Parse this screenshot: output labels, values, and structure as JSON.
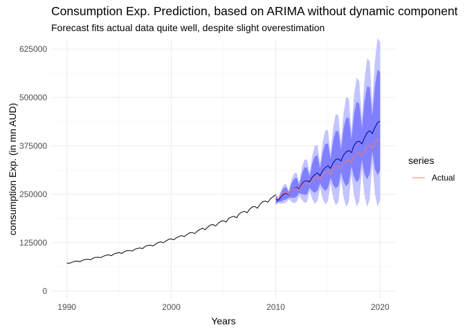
{
  "chart_data": {
    "type": "line",
    "title": "Consumption Exp. Prediction, based on ARIMA without dynamic component",
    "subtitle": "Forecast fits actual data quite well, despite slight overestimation",
    "xlabel": "Years",
    "ylabel": "consumption Exp. (in mn AUD)",
    "xlim": [
      1988.5,
      2021.5
    ],
    "ylim": [
      -20000,
      650000
    ],
    "x_ticks": [
      1990,
      2000,
      2010,
      2020
    ],
    "y_ticks": [
      0,
      125000,
      250000,
      375000,
      500000,
      625000
    ],
    "y_tick_labels": [
      "0",
      "125000",
      "250000",
      "375000",
      "500000",
      "625000"
    ],
    "grid": true,
    "legend": {
      "title": "series",
      "position": "right",
      "entries": [
        {
          "label": "Actual",
          "color": "#f8766d"
        }
      ]
    },
    "history": {
      "start": 1990.0,
      "end": 2010.0,
      "start_value": 72000,
      "end_value": 245000,
      "growth": "exponential",
      "seasonal": "quarterly",
      "color": "#000000"
    },
    "forecast": {
      "start": 2010.0,
      "end": 2020.0,
      "start_value": 235000,
      "end_value": 433000,
      "color": "#00008b",
      "band_80": {
        "start_half_width": 8000,
        "end_half_width": 100000,
        "color": "#8080ff"
      },
      "band_95": {
        "start_half_width": 12000,
        "end_half_width": 160000,
        "color": "#c4c4ff"
      }
    },
    "actual": {
      "start": 2010.0,
      "end": 2020.0,
      "start_value": 240000,
      "end_value": 388000,
      "color": "#f8766d"
    }
  }
}
